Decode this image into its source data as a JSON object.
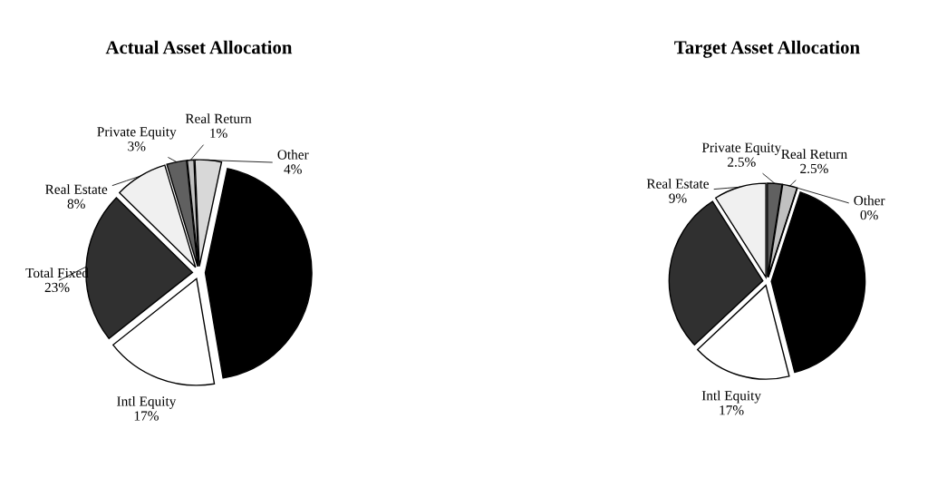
{
  "chart_data": [
    {
      "type": "pie",
      "title": "Actual Asset Allocation",
      "categories": [
        null,
        "Intl Equity",
        "Total Fixed",
        "Real Estate",
        "Private Equity",
        "Real Return",
        "Other"
      ],
      "values": [
        44,
        17,
        23,
        8,
        3,
        1,
        4
      ],
      "value_labels": [
        null,
        "17%",
        "23%",
        "8%",
        "3%",
        "1%",
        "4%"
      ],
      "colors": [
        "#000000",
        "#ffffff",
        "#303030",
        "#f0f0f0",
        "#606060",
        "#c0c0c0",
        "#d8d8d8"
      ]
    },
    {
      "type": "pie",
      "title": "Target Asset Allocation",
      "categories": [
        null,
        "Intl Equity",
        null,
        "Real Estate",
        "Private Equity",
        "Real Return",
        "Other"
      ],
      "values": [
        41,
        17,
        28,
        9,
        2.5,
        2.5,
        0
      ],
      "value_labels": [
        null,
        "17%",
        null,
        "9%",
        "2.5%",
        "2.5%",
        "0%"
      ],
      "colors": [
        "#000000",
        "#ffffff",
        "#303030",
        "#f0f0f0",
        "#606060",
        "#c0c0c0",
        "#d8d8d8"
      ]
    }
  ]
}
